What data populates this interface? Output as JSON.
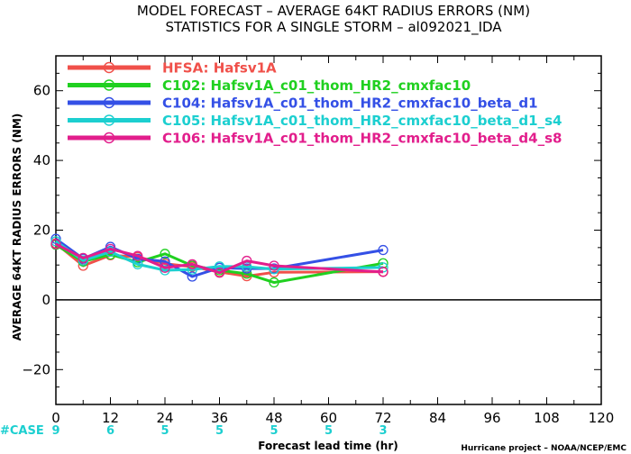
{
  "title_line1": "MODEL FORECAST – AVERAGE 64KT RADIUS ERRORS (NM)",
  "title_line2": "STATISTICS FOR A SINGLE STORM – al092021_IDA",
  "credit": "Hurricane project – NOAA/NCEP/EMC",
  "case_label": "#CASE",
  "chart_data": {
    "type": "line",
    "title": "MODEL FORECAST – AVERAGE 64KT RADIUS ERRORS (NM)",
    "subtitle": "STATISTICS FOR A SINGLE STORM – al092021_IDA",
    "xlabel": "Forecast lead time (hr)",
    "ylabel": "AVERAGE 64KT RADIUS ERRORS (NM)",
    "xlim": [
      0,
      120
    ],
    "ylim": [
      -30,
      70
    ],
    "xticks": [
      "0",
      "12",
      "24",
      "36",
      "48",
      "60",
      "72",
      "84",
      "96",
      "108",
      "120"
    ],
    "yticks": [
      "-20",
      "0",
      "20",
      "40",
      "60"
    ],
    "grid": false,
    "legend_position": "top-left",
    "x": [
      0,
      6,
      12,
      18,
      24,
      30,
      36,
      42,
      48,
      72
    ],
    "series": [
      {
        "name": "HFSA: Hafsv1A",
        "color": "#f0504a",
        "values": [
          16.2,
          9.8,
          12.8,
          12.3,
          10.4,
          9.5,
          8.0,
          6.8,
          7.9,
          8.1
        ]
      },
      {
        "name": "C102: Hafsv1A_c01_thom_HR2_cmxfac10",
        "color": "#20d020",
        "values": [
          15.8,
          11.0,
          13.0,
          10.8,
          13.2,
          9.8,
          8.5,
          7.5,
          5.0,
          10.5
        ]
      },
      {
        "name": "C104: Hafsv1A_c01_thom_HR2_cmxfac10_beta_d1",
        "color": "#3450e6",
        "values": [
          17.5,
          11.8,
          15.2,
          11.8,
          11.0,
          6.7,
          9.2,
          9.0,
          9.0,
          14.3
        ]
      },
      {
        "name": "C105: Hafsv1A_c01_thom_HR2_cmxfac10_beta_d1_s4",
        "color": "#1ccfd0",
        "values": [
          16.8,
          11.3,
          13.8,
          10.2,
          8.5,
          8.7,
          9.6,
          9.5,
          8.8,
          9.3
        ]
      },
      {
        "name": "C106: Hafsv1A_c01_thom_HR2_cmxfac10_beta_d4_s8",
        "color": "#e21e8c",
        "values": [
          16.0,
          12.0,
          14.6,
          12.6,
          9.2,
          10.2,
          7.8,
          11.2,
          9.8,
          8.0
        ]
      }
    ],
    "case_counts": {
      "x": [
        0,
        12,
        24,
        36,
        48,
        60,
        72
      ],
      "values": [
        "9",
        "6",
        "5",
        "5",
        "5",
        "5",
        "3"
      ]
    }
  }
}
